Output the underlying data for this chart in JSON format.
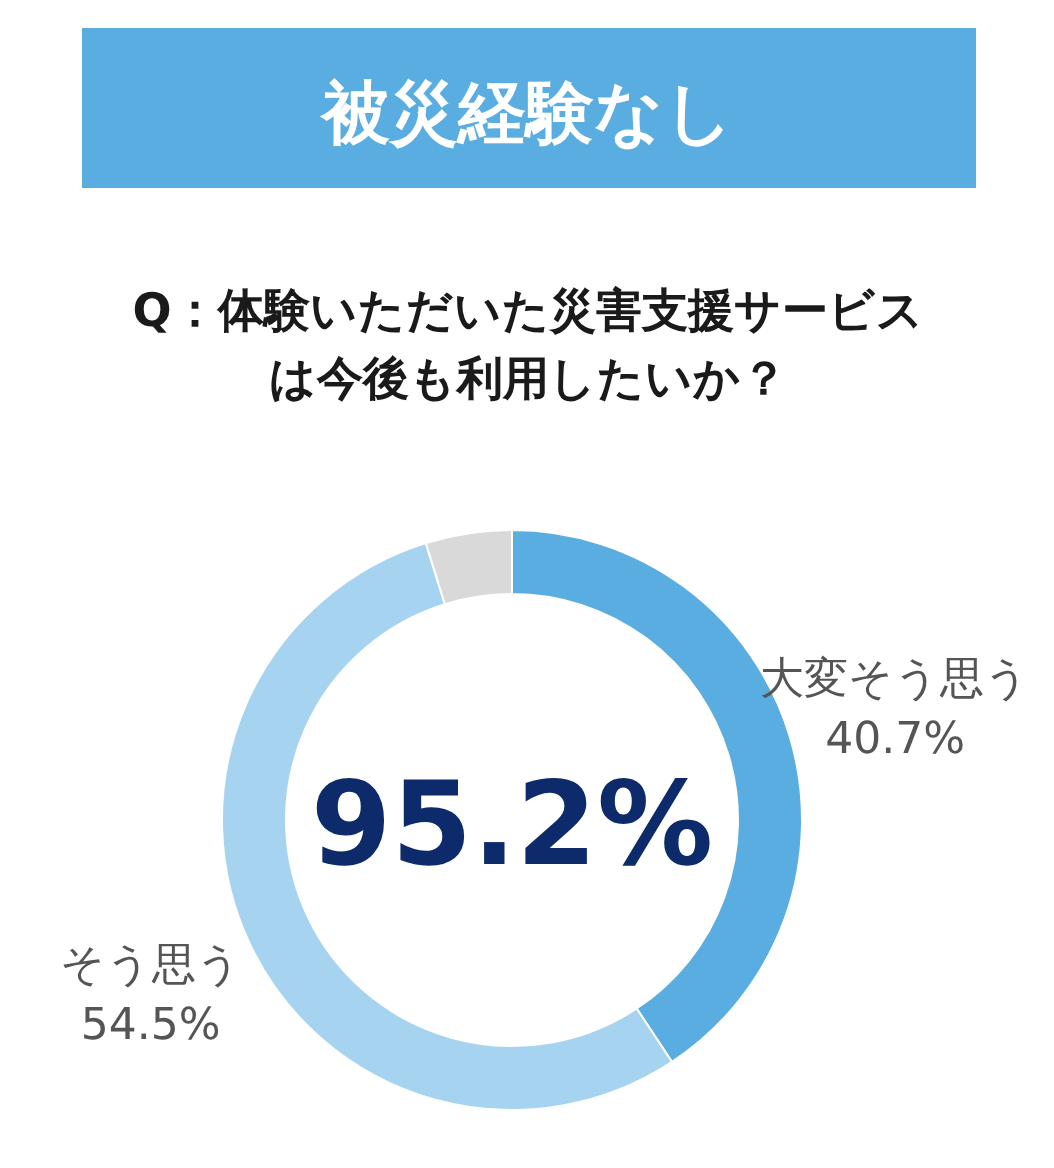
{
  "chart_data": {
    "type": "donut",
    "title": "被災経験なし",
    "subtitle": "Q：体験いただいた災害支援サービスは今後も利用したいか？",
    "categories": [
      "大変そう思う",
      "そう思う",
      null
    ],
    "values": [
      40.7,
      54.5,
      4.8
    ],
    "value_labels": [
      "40.7%",
      "54.5%",
      null
    ],
    "colors": [
      "#5aade0",
      "#a6d3f0",
      "#d9d9d9"
    ],
    "annotations": [
      "95.2%"
    ]
  }
}
